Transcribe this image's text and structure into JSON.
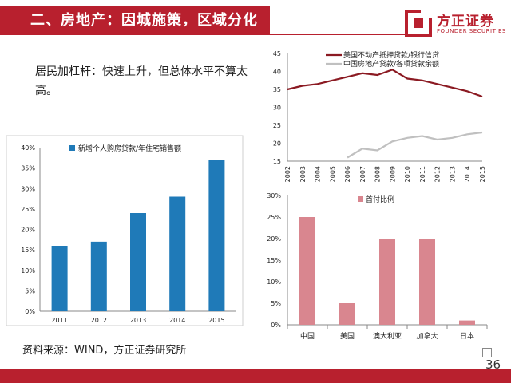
{
  "header": {
    "title": "二、房地产：因城施策，区域分化",
    "logo_cn": "方正证券",
    "logo_en": "FOUNDER SECURITIES"
  },
  "body_text": "居民加杠杆：快速上升，但总体水平不算太高。",
  "source": "资料来源：WIND，方正证券研究所",
  "page_number": "36",
  "colors": {
    "brand_red": "#b8202e",
    "bar_blue": "#1f7ab8",
    "line_dark": "#8b1a22",
    "line_light": "#c0c0c0",
    "bar_pink": "#d9868f"
  },
  "chart_data": [
    {
      "type": "bar",
      "categories": [
        "2011",
        "2012",
        "2013",
        "2014",
        "2015"
      ],
      "series": [
        {
          "name": "新增个人购房贷款/年住宅销售额",
          "values": [
            16,
            17,
            24,
            28,
            37
          ]
        }
      ],
      "ylim": [
        0,
        40
      ],
      "yticks": [
        "0%",
        "5%",
        "10%",
        "15%",
        "20%",
        "25%",
        "30%",
        "35%",
        "40%"
      ],
      "grid": false,
      "legend": "top-left"
    },
    {
      "type": "line",
      "x": [
        "2002",
        "2003",
        "2004",
        "2005",
        "2006",
        "2007",
        "2008",
        "2009",
        "2010",
        "2011",
        "2012",
        "2013",
        "2014",
        "2015"
      ],
      "series": [
        {
          "name": "美国不动产抵押贷款/银行信贷",
          "values": [
            35,
            36,
            36.5,
            37.5,
            38.5,
            39.5,
            39,
            40.5,
            38,
            37.5,
            36.5,
            35.5,
            34.5,
            33
          ]
        },
        {
          "name": "中国房地产贷款/各项贷款余额",
          "values": [
            null,
            null,
            null,
            null,
            16,
            18.5,
            18,
            20.5,
            21.5,
            22,
            21,
            21.5,
            22.5,
            23
          ]
        }
      ],
      "ylim": [
        15,
        45
      ],
      "yticks": [
        "15",
        "20",
        "25",
        "30",
        "35",
        "40",
        "45"
      ],
      "grid": false,
      "legend": "top"
    },
    {
      "type": "bar",
      "categories": [
        "中国",
        "美国",
        "澳大利亚",
        "加拿大",
        "日本"
      ],
      "series": [
        {
          "name": "首付比例",
          "values": [
            25,
            5,
            20,
            20,
            1
          ]
        }
      ],
      "ylim": [
        0,
        30
      ],
      "yticks": [
        "0%",
        "5%",
        "10%",
        "15%",
        "20%",
        "25%",
        "30%"
      ],
      "grid": false,
      "legend": "top-left"
    }
  ]
}
